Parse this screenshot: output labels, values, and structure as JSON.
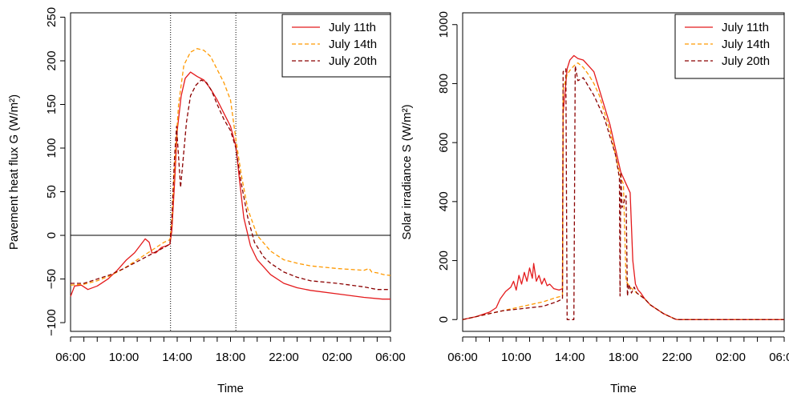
{
  "chart_data": [
    {
      "type": "line",
      "xlabel": "Time",
      "ylabel": "Pavement heat flux G (W/m²)",
      "xlim": [
        0,
        24
      ],
      "ylim": [
        -110,
        255
      ],
      "x_ticks_minor_every_hours": 1,
      "x_tick_labels": [
        {
          "at": 0,
          "label": "06:00"
        },
        {
          "at": 4,
          "label": "10:00"
        },
        {
          "at": 8,
          "label": "14:00"
        },
        {
          "at": 12,
          "label": "18:00"
        },
        {
          "at": 16,
          "label": "22:00"
        },
        {
          "at": 20,
          "label": "02:00"
        },
        {
          "at": 24,
          "label": "06:00"
        }
      ],
      "y_ticks": [
        -100,
        -50,
        0,
        50,
        100,
        150,
        200,
        250
      ],
      "y_tick_labels": [
        "−100",
        "−50",
        "0",
        "50",
        "100",
        "150",
        "200",
        "250"
      ],
      "reference_lines": {
        "horizontal": [
          0
        ],
        "vertical_dotted": [
          7.5,
          12.4
        ]
      },
      "legend_position": "top-right",
      "series": [
        {
          "name": "July 11th",
          "color": "#e41a1c",
          "dash": "solid",
          "points": [
            [
              0,
              -70
            ],
            [
              0.3,
              -58
            ],
            [
              0.8,
              -57
            ],
            [
              1.3,
              -62
            ],
            [
              2,
              -58
            ],
            [
              2.8,
              -50
            ],
            [
              3.5,
              -40
            ],
            [
              4.2,
              -28
            ],
            [
              4.8,
              -20
            ],
            [
              5.3,
              -10
            ],
            [
              5.6,
              -4
            ],
            [
              5.9,
              -8
            ],
            [
              6.1,
              -20
            ],
            [
              6.4,
              -20
            ],
            [
              6.8,
              -14
            ],
            [
              7.2,
              -12
            ],
            [
              7.45,
              -10
            ],
            [
              7.6,
              5
            ],
            [
              7.8,
              60
            ],
            [
              8.0,
              120
            ],
            [
              8.3,
              160
            ],
            [
              8.6,
              180
            ],
            [
              9.0,
              187
            ],
            [
              9.5,
              182
            ],
            [
              10.0,
              178
            ],
            [
              10.5,
              168
            ],
            [
              11.0,
              155
            ],
            [
              11.5,
              140
            ],
            [
              12.0,
              125
            ],
            [
              12.4,
              102
            ],
            [
              12.7,
              60
            ],
            [
              13.0,
              20
            ],
            [
              13.5,
              -12
            ],
            [
              14.0,
              -28
            ],
            [
              15.0,
              -45
            ],
            [
              16.0,
              -55
            ],
            [
              17.0,
              -60
            ],
            [
              18.0,
              -63
            ],
            [
              20.0,
              -67
            ],
            [
              22.0,
              -71
            ],
            [
              23.4,
              -73
            ],
            [
              24.0,
              -73
            ]
          ]
        },
        {
          "name": "July 14th",
          "color": "#ff9900",
          "dash": "dashed",
          "points": [
            [
              0,
              -57
            ],
            [
              1,
              -56
            ],
            [
              2,
              -52
            ],
            [
              3,
              -46
            ],
            [
              4,
              -38
            ],
            [
              5,
              -28
            ],
            [
              6,
              -18
            ],
            [
              7,
              -8
            ],
            [
              7.45,
              -5
            ],
            [
              7.6,
              15
            ],
            [
              7.8,
              80
            ],
            [
              8.1,
              150
            ],
            [
              8.5,
              195
            ],
            [
              9.0,
              210
            ],
            [
              9.5,
              214
            ],
            [
              10.0,
              212
            ],
            [
              10.5,
              205
            ],
            [
              11.0,
              190
            ],
            [
              11.5,
              175
            ],
            [
              12.0,
              155
            ],
            [
              12.4,
              110
            ],
            [
              12.8,
              70
            ],
            [
              13.3,
              30
            ],
            [
              14.0,
              0
            ],
            [
              15.0,
              -18
            ],
            [
              16.0,
              -28
            ],
            [
              17.0,
              -32
            ],
            [
              18.0,
              -35
            ],
            [
              20.0,
              -38
            ],
            [
              22.0,
              -40
            ],
            [
              22.4,
              -38
            ],
            [
              22.6,
              -42
            ],
            [
              23.0,
              -43
            ],
            [
              23.5,
              -45
            ],
            [
              24.0,
              -46
            ]
          ]
        },
        {
          "name": "July 20th",
          "color": "#8b0000",
          "dash": "dashed",
          "points": [
            [
              0,
              -55
            ],
            [
              1,
              -55
            ],
            [
              2,
              -50
            ],
            [
              3,
              -45
            ],
            [
              4,
              -38
            ],
            [
              5,
              -30
            ],
            [
              6,
              -22
            ],
            [
              7,
              -14
            ],
            [
              7.45,
              -10
            ],
            [
              7.6,
              20
            ],
            [
              7.8,
              90
            ],
            [
              7.95,
              125
            ],
            [
              8.1,
              90
            ],
            [
              8.25,
              55
            ],
            [
              8.4,
              80
            ],
            [
              8.7,
              130
            ],
            [
              9.0,
              160
            ],
            [
              9.4,
              172
            ],
            [
              9.8,
              178
            ],
            [
              10.2,
              175
            ],
            [
              10.6,
              165
            ],
            [
              11.0,
              150
            ],
            [
              11.5,
              133
            ],
            [
              12.0,
              120
            ],
            [
              12.4,
              100
            ],
            [
              12.8,
              60
            ],
            [
              13.3,
              20
            ],
            [
              13.8,
              -8
            ],
            [
              14.5,
              -25
            ],
            [
              15.0,
              -32
            ],
            [
              16.0,
              -42
            ],
            [
              17.0,
              -48
            ],
            [
              18.0,
              -52
            ],
            [
              20.0,
              -55
            ],
            [
              22.0,
              -59
            ],
            [
              23.0,
              -62
            ],
            [
              24.0,
              -62
            ]
          ]
        }
      ]
    },
    {
      "type": "line",
      "xlabel": "Time",
      "ylabel": "Solar irradiance S (W/m²)",
      "xlim": [
        0,
        24
      ],
      "ylim": [
        -40,
        1040
      ],
      "x_ticks_minor_every_hours": 1,
      "x_tick_labels": [
        {
          "at": 0,
          "label": "06:00"
        },
        {
          "at": 4,
          "label": "10:00"
        },
        {
          "at": 8,
          "label": "14:00"
        },
        {
          "at": 12,
          "label": "18:00"
        },
        {
          "at": 16,
          "label": "22:00"
        },
        {
          "at": 20,
          "label": "02:00"
        },
        {
          "at": 24,
          "label": "06:00"
        }
      ],
      "y_ticks": [
        0,
        200,
        400,
        600,
        800,
        1000
      ],
      "y_tick_labels": [
        "0",
        "200",
        "400",
        "600",
        "800",
        "1000"
      ],
      "legend_position": "top-right",
      "series": [
        {
          "name": "July 11th",
          "color": "#e41a1c",
          "dash": "solid",
          "points": [
            [
              0,
              0
            ],
            [
              1,
              10
            ],
            [
              2,
              25
            ],
            [
              2.5,
              40
            ],
            [
              2.8,
              70
            ],
            [
              3.2,
              95
            ],
            [
              3.6,
              110
            ],
            [
              3.8,
              130
            ],
            [
              4.0,
              100
            ],
            [
              4.2,
              150
            ],
            [
              4.4,
              120
            ],
            [
              4.6,
              160
            ],
            [
              4.8,
              130
            ],
            [
              5.0,
              175
            ],
            [
              5.2,
              140
            ],
            [
              5.3,
              190
            ],
            [
              5.5,
              130
            ],
            [
              5.7,
              150
            ],
            [
              5.9,
              120
            ],
            [
              6.1,
              140
            ],
            [
              6.3,
              115
            ],
            [
              6.5,
              120
            ],
            [
              6.8,
              105
            ],
            [
              7.2,
              100
            ],
            [
              7.45,
              105
            ],
            [
              7.5,
              700
            ],
            [
              7.8,
              850
            ],
            [
              8.0,
              880
            ],
            [
              8.3,
              895
            ],
            [
              8.6,
              885
            ],
            [
              9.0,
              880
            ],
            [
              9.4,
              860
            ],
            [
              9.8,
              840
            ],
            [
              10.2,
              780
            ],
            [
              10.6,
              720
            ],
            [
              11.0,
              660
            ],
            [
              11.4,
              580
            ],
            [
              11.8,
              500
            ],
            [
              12.2,
              460
            ],
            [
              12.5,
              430
            ],
            [
              12.7,
              200
            ],
            [
              12.9,
              120
            ],
            [
              13.1,
              100
            ],
            [
              13.3,
              90
            ],
            [
              13.6,
              70
            ],
            [
              14.0,
              50
            ],
            [
              15.0,
              20
            ],
            [
              15.8,
              3
            ],
            [
              16.0,
              0
            ],
            [
              20.0,
              0
            ],
            [
              24.0,
              0
            ]
          ]
        },
        {
          "name": "July 14th",
          "color": "#ff9900",
          "dash": "dashed",
          "points": [
            [
              0,
              0
            ],
            [
              1,
              10
            ],
            [
              2,
              20
            ],
            [
              3,
              30
            ],
            [
              4,
              40
            ],
            [
              5,
              50
            ],
            [
              6,
              60
            ],
            [
              7,
              75
            ],
            [
              7.45,
              80
            ],
            [
              7.5,
              780
            ],
            [
              7.8,
              830
            ],
            [
              8.0,
              845
            ],
            [
              8.3,
              860
            ],
            [
              8.6,
              870
            ],
            [
              9.0,
              855
            ],
            [
              9.4,
              830
            ],
            [
              9.8,
              800
            ],
            [
              10.2,
              760
            ],
            [
              10.6,
              700
            ],
            [
              11.0,
              640
            ],
            [
              11.4,
              560
            ],
            [
              11.8,
              480
            ],
            [
              12.0,
              460
            ],
            [
              12.2,
              130
            ],
            [
              12.5,
              110
            ],
            [
              13.0,
              90
            ],
            [
              13.6,
              70
            ],
            [
              14.0,
              50
            ],
            [
              15.0,
              20
            ],
            [
              15.8,
              3
            ],
            [
              16.0,
              0
            ],
            [
              20.0,
              0
            ],
            [
              24.0,
              0
            ]
          ]
        },
        {
          "name": "July 20th",
          "color": "#8b0000",
          "dash": "dashed",
          "points": [
            [
              0,
              0
            ],
            [
              1,
              10
            ],
            [
              2,
              20
            ],
            [
              3,
              30
            ],
            [
              4,
              35
            ],
            [
              5,
              40
            ],
            [
              6,
              45
            ],
            [
              7,
              60
            ],
            [
              7.45,
              70
            ],
            [
              7.5,
              840
            ],
            [
              7.7,
              850
            ],
            [
              7.8,
              0
            ],
            [
              8.3,
              0
            ],
            [
              8.4,
              860
            ],
            [
              8.6,
              810
            ],
            [
              9.0,
              820
            ],
            [
              9.4,
              790
            ],
            [
              9.8,
              760
            ],
            [
              10.2,
              720
            ],
            [
              10.6,
              680
            ],
            [
              11.0,
              620
            ],
            [
              11.4,
              560
            ],
            [
              11.7,
              480
            ],
            [
              11.75,
              80
            ],
            [
              11.8,
              500
            ],
            [
              11.9,
              380
            ],
            [
              12.2,
              420
            ],
            [
              12.3,
              80
            ],
            [
              12.4,
              120
            ],
            [
              12.6,
              90
            ],
            [
              12.8,
              110
            ],
            [
              13.0,
              90
            ],
            [
              13.6,
              70
            ],
            [
              14.0,
              50
            ],
            [
              15.0,
              20
            ],
            [
              15.8,
              3
            ],
            [
              16.0,
              0
            ],
            [
              20.0,
              0
            ],
            [
              24.0,
              0
            ]
          ]
        }
      ]
    }
  ]
}
